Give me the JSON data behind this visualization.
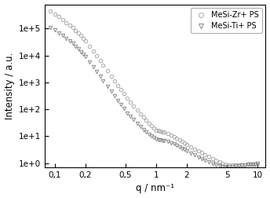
{
  "title": "",
  "xlabel": "q / nm⁻¹",
  "ylabel": "Intensity / a.u.",
  "xlim": [
    0.08,
    12
  ],
  "ylim": [
    0.7,
    800000.0
  ],
  "xticks": [
    0.1,
    0.2,
    0.5,
    1,
    2,
    5,
    10
  ],
  "xticklabels": [
    "0,1",
    "0,2",
    "0,5",
    "1",
    "2",
    "5",
    "10"
  ],
  "yticks": [
    1,
    10,
    100,
    1000,
    10000,
    100000
  ],
  "yticklabels": [
    "1e+0",
    "1e+1",
    "1e+2",
    "1e+3",
    "1e+4",
    "1e+5"
  ],
  "legend_labels": [
    "MeSi-Zr+ PS",
    "MeSi-Ti+ PS"
  ],
  "marker_zr": "o",
  "marker_ti": "v",
  "color_zr": "#aaaaaa",
  "color_ti": "#888888",
  "background": "#ffffff",
  "series_zr_q": [
    0.09,
    0.1,
    0.11,
    0.12,
    0.13,
    0.14,
    0.15,
    0.16,
    0.17,
    0.18,
    0.19,
    0.2,
    0.22,
    0.24,
    0.26,
    0.28,
    0.3,
    0.33,
    0.36,
    0.39,
    0.42,
    0.45,
    0.48,
    0.52,
    0.56,
    0.6,
    0.65,
    0.7,
    0.75,
    0.8,
    0.85,
    0.9,
    0.95,
    1.0,
    1.05,
    1.1,
    1.15,
    1.2,
    1.3,
    1.4,
    1.5,
    1.6,
    1.7,
    1.8,
    1.9,
    2.0,
    2.2,
    2.4,
    2.6,
    2.8,
    3.0,
    3.3,
    3.6,
    3.9,
    4.2,
    4.5,
    4.8,
    5.2,
    5.6,
    6.0,
    6.5,
    7.0,
    7.5,
    8.0,
    8.5,
    9.0,
    9.5,
    10.0
  ],
  "series_zr_I": [
    450000.0,
    350000.0,
    280000.0,
    220000.0,
    170000.0,
    135000.0,
    107000.0,
    85000.0,
    68000.0,
    55000.0,
    44000.0,
    35000.0,
    22500.0,
    14500.0,
    9500,
    6400,
    4300,
    2700,
    1750,
    1150,
    780,
    540,
    390,
    260,
    185,
    135,
    94,
    68,
    51,
    39,
    30,
    24,
    20,
    17,
    16,
    15,
    14.5,
    14,
    12.5,
    11,
    9.5,
    8.3,
    7.2,
    6.3,
    5.6,
    5.0,
    4.1,
    3.4,
    2.9,
    2.5,
    2.1,
    1.75,
    1.5,
    1.28,
    1.12,
    1.0,
    0.92,
    0.87,
    0.84,
    0.83,
    0.83,
    0.85,
    0.87,
    0.89,
    0.91,
    0.93,
    0.94,
    0.96
  ],
  "series_ti_q": [
    0.09,
    0.1,
    0.11,
    0.12,
    0.13,
    0.14,
    0.15,
    0.16,
    0.17,
    0.18,
    0.19,
    0.2,
    0.22,
    0.24,
    0.26,
    0.28,
    0.3,
    0.33,
    0.36,
    0.39,
    0.42,
    0.45,
    0.48,
    0.52,
    0.56,
    0.6,
    0.65,
    0.7,
    0.75,
    0.8,
    0.85,
    0.9,
    0.95,
    1.0,
    1.05,
    1.1,
    1.15,
    1.2,
    1.3,
    1.4,
    1.5,
    1.6,
    1.7,
    1.8,
    1.9,
    2.0,
    2.2,
    2.4,
    2.6,
    2.8,
    3.0,
    3.3,
    3.6,
    3.9,
    4.2,
    4.5,
    4.8,
    5.2,
    5.6,
    6.0,
    6.5,
    7.0,
    7.5,
    8.0,
    8.5,
    9.0,
    9.5,
    10.0
  ],
  "series_ti_I": [
    110000.0,
    88000.0,
    70000.0,
    56000.0,
    44000.0,
    35000.0,
    28000.0,
    22000.0,
    17500.0,
    14000.0,
    11200.0,
    9000.0,
    5800,
    3800,
    2500,
    1680,
    1150,
    720,
    470,
    315,
    215,
    150,
    110,
    75,
    55,
    41,
    30,
    23,
    18,
    14.5,
    12,
    10,
    8.8,
    8.0,
    7.5,
    7.2,
    7.0,
    6.8,
    6.3,
    5.7,
    5.1,
    4.5,
    4.0,
    3.6,
    3.2,
    2.9,
    2.4,
    2.0,
    1.7,
    1.5,
    1.3,
    1.1,
    0.97,
    0.87,
    0.8,
    0.76,
    0.74,
    0.74,
    0.76,
    0.79,
    0.82,
    0.85,
    0.87,
    0.89,
    0.91,
    0.93,
    0.94,
    0.95
  ]
}
